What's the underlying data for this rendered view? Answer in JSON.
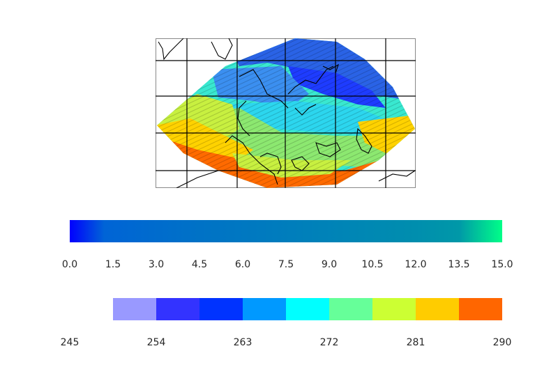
{
  "map": {
    "description_grid": "lat-lon grid",
    "field_colors": {
      "deep_blue": "#1e3cff",
      "blue": "#2a63e6",
      "light_blue": "#3b8ff0",
      "cyan": "#2cd6ee",
      "aqua": "#39e8d0",
      "green": "#8ce870",
      "yellow_green": "#c8f040",
      "yellow": "#ffd200",
      "orange": "#ff6a00"
    }
  },
  "colorbar_speed": {
    "ticks": [
      "0.0",
      "1.5",
      "3.0",
      "4.5",
      "6.0",
      "7.5",
      "9.0",
      "10.5",
      "12.0",
      "13.5",
      "15.0"
    ],
    "min": 0.0,
    "max": 15.0,
    "colors": [
      "#0000ff",
      "#0060d8",
      "#0070c8",
      "#007cc0",
      "#0086b8",
      "#008eb0",
      "#0096a8",
      "#00ff88"
    ]
  },
  "colorbar_temp": {
    "ticks": [
      "245",
      "254",
      "263",
      "272",
      "281",
      "290"
    ],
    "min": 245,
    "max": 290,
    "segments": [
      {
        "from": 250,
        "to": 255,
        "color": "#9999ff"
      },
      {
        "from": 255,
        "to": 260,
        "color": "#3333ff"
      },
      {
        "from": 260,
        "to": 265,
        "color": "#0033ff"
      },
      {
        "from": 265,
        "to": 270,
        "color": "#0099ff"
      },
      {
        "from": 270,
        "to": 275,
        "color": "#00ffff"
      },
      {
        "from": 275,
        "to": 280,
        "color": "#66ff99"
      },
      {
        "from": 280,
        "to": 285,
        "color": "#ccff33"
      },
      {
        "from": 285,
        "to": 290,
        "color": "#ffcc00"
      },
      {
        "from": 290,
        "to": 295,
        "color": "#ff6600"
      }
    ]
  }
}
